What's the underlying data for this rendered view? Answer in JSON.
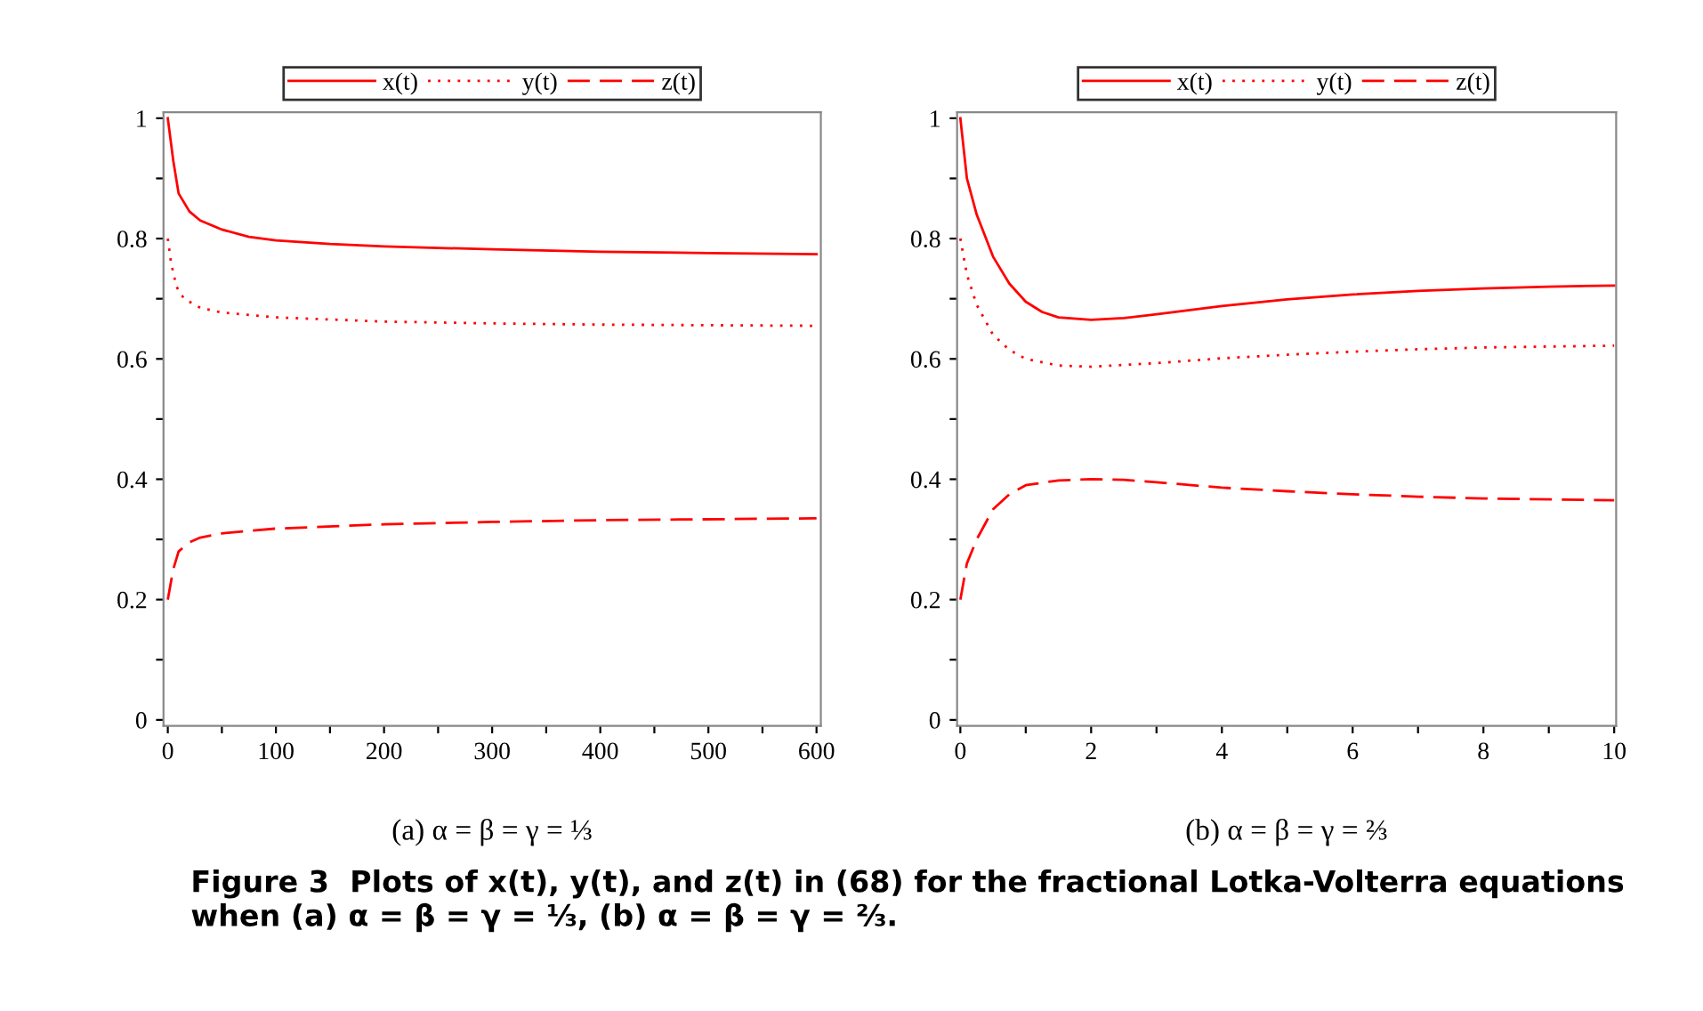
{
  "chart_data": [
    {
      "type": "line",
      "xlabel": "(a) α = β = γ = ⅓",
      "legend": "top",
      "grid": false,
      "xlim": [
        -4,
        604
      ],
      "ylim": [
        -0.01,
        1.01
      ],
      "xticks": [
        0,
        {
          "value": 50,
          "label": null
        },
        100,
        {
          "value": 150,
          "label": null
        },
        200,
        {
          "value": 250,
          "label": null
        },
        300,
        {
          "value": 350,
          "label": null
        },
        400,
        {
          "value": 450,
          "label": null
        },
        500,
        {
          "value": 550,
          "label": null
        },
        600
      ],
      "yticks": [
        0,
        {
          "value": 0.1,
          "label": null
        },
        0.2,
        {
          "value": 0.3,
          "label": null
        },
        0.4,
        {
          "value": 0.5,
          "label": null
        },
        0.6,
        {
          "value": 0.7,
          "label": null
        },
        0.8,
        {
          "value": 0.9,
          "label": null
        },
        1
      ],
      "series": [
        {
          "name": "x(t)",
          "color": "#ff0000",
          "line_style": "solid",
          "x": [
            0,
            5,
            10,
            20,
            30,
            50,
            75,
            100,
            150,
            200,
            300,
            400,
            500,
            600
          ],
          "values": [
            1,
            0.93,
            0.875,
            0.845,
            0.83,
            0.815,
            0.803,
            0.797,
            0.791,
            0.787,
            0.782,
            0.778,
            0.776,
            0.774
          ]
        },
        {
          "name": "y(t)",
          "color": "#ff0000",
          "line_style": "dotted",
          "x": [
            0,
            3,
            8,
            15,
            30,
            50,
            100,
            200,
            300,
            400,
            600
          ],
          "values": [
            0.8,
            0.76,
            0.72,
            0.7,
            0.685,
            0.677,
            0.669,
            0.662,
            0.659,
            0.657,
            0.655
          ]
        },
        {
          "name": "z(t)",
          "color": "#ff0000",
          "line_style": "dashed",
          "x": [
            0,
            5,
            10,
            20,
            30,
            50,
            100,
            200,
            300,
            400,
            600
          ],
          "values": [
            0.2,
            0.25,
            0.28,
            0.295,
            0.303,
            0.31,
            0.318,
            0.325,
            0.329,
            0.332,
            0.335
          ]
        }
      ],
      "annotations": [
        "Figure 3  Plots of x(t), y(t), and z(t) in (68) for the fractional Lotka-Volterra equations when (a) α = β = γ = ⅓, (b) α = β = γ = ⅔."
      ]
    },
    {
      "type": "line",
      "xlabel": "(b) α = β = γ = ⅔",
      "legend": "top",
      "grid": false,
      "xlim": [
        -0.05,
        10.03
      ],
      "ylim": [
        -0.01,
        1.01
      ],
      "xticks": [
        0,
        {
          "value": 1,
          "label": null
        },
        2,
        {
          "value": 3,
          "label": null
        },
        4,
        {
          "value": 5,
          "label": null
        },
        6,
        {
          "value": 7,
          "label": null
        },
        8,
        {
          "value": 9,
          "label": null
        },
        10
      ],
      "yticks": [
        0,
        {
          "value": 0.1,
          "label": null
        },
        0.2,
        {
          "value": 0.3,
          "label": null
        },
        0.4,
        {
          "value": 0.5,
          "label": null
        },
        0.6,
        {
          "value": 0.7,
          "label": null
        },
        0.8,
        {
          "value": 0.9,
          "label": null
        },
        1
      ],
      "series": [
        {
          "name": "x(t)",
          "color": "#ff0000",
          "line_style": "solid",
          "x": [
            0,
            0.1,
            0.25,
            0.5,
            0.75,
            1,
            1.25,
            1.5,
            2,
            2.5,
            3,
            4,
            5,
            6,
            7,
            8,
            9,
            10
          ],
          "values": [
            1,
            0.9,
            0.84,
            0.77,
            0.725,
            0.695,
            0.678,
            0.669,
            0.665,
            0.668,
            0.674,
            0.688,
            0.699,
            0.707,
            0.713,
            0.717,
            0.72,
            0.722
          ]
        },
        {
          "name": "y(t)",
          "color": "#ff0000",
          "line_style": "dotted",
          "x": [
            0,
            0.1,
            0.25,
            0.5,
            0.75,
            1,
            1.5,
            2,
            3,
            4,
            5,
            6,
            7,
            8,
            10
          ],
          "values": [
            0.8,
            0.74,
            0.69,
            0.64,
            0.615,
            0.6,
            0.589,
            0.587,
            0.593,
            0.601,
            0.607,
            0.612,
            0.616,
            0.619,
            0.622
          ]
        },
        {
          "name": "z(t)",
          "color": "#ff0000",
          "line_style": "dashed",
          "x": [
            0,
            0.1,
            0.25,
            0.5,
            0.75,
            1,
            1.5,
            2,
            2.5,
            3,
            4,
            5,
            6,
            7,
            8,
            10
          ],
          "values": [
            0.2,
            0.26,
            0.3,
            0.35,
            0.375,
            0.39,
            0.398,
            0.4,
            0.399,
            0.395,
            0.386,
            0.38,
            0.375,
            0.371,
            0.368,
            0.365
          ]
        }
      ]
    }
  ]
}
